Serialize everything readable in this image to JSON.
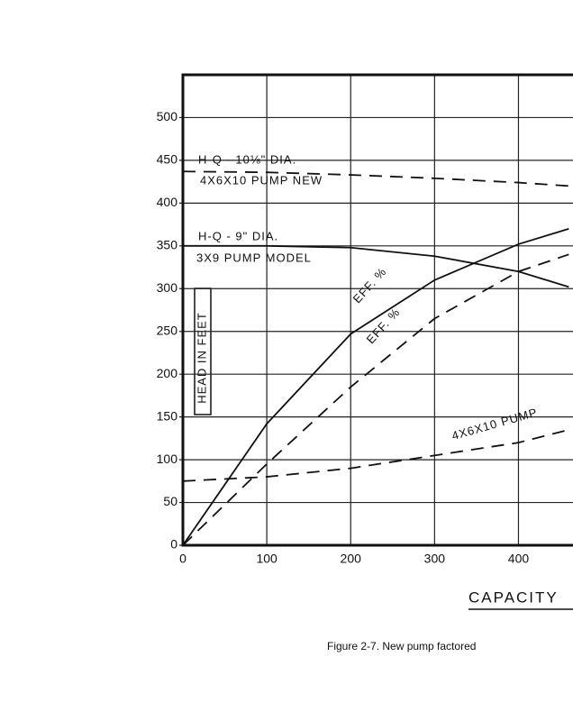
{
  "chart_data": {
    "type": "line",
    "xlabel": "CAPACITY",
    "ylabel": "HEAD IN FEET",
    "caption": "Figure 2-7. New pump factored",
    "xlim": [
      0,
      465
    ],
    "ylim": [
      0,
      550
    ],
    "xticks": [
      0,
      100,
      200,
      300,
      400
    ],
    "yticks": [
      0,
      50,
      100,
      150,
      200,
      250,
      300,
      350,
      400,
      450,
      500
    ],
    "grid": true,
    "x": [
      0,
      100,
      200,
      300,
      400,
      460
    ],
    "series": [
      {
        "color": "#111111",
        "dashed": true,
        "values": [
          437,
          436,
          433,
          429,
          424,
          420
        ]
      },
      {
        "color": "#111111",
        "dashed": false,
        "values": [
          350,
          350,
          348,
          338,
          320,
          302
        ]
      },
      {
        "color": "#111111",
        "dashed": false,
        "values": [
          0,
          142,
          247,
          310,
          352,
          370
        ]
      },
      {
        "color": "#111111",
        "dashed": true,
        "values": [
          0,
          95,
          185,
          265,
          320,
          340
        ]
      },
      {
        "color": "#111111",
        "dashed": true,
        "values": [
          75,
          80,
          90,
          105,
          120,
          135
        ]
      }
    ],
    "annotations": [
      "H-Q - 10⅛\" DIA.",
      "4X6X10  PUMP  NEW",
      "H-Q - 9\" DIA.",
      "3X9  PUMP  MODEL",
      "EFF. %",
      "EFF. %",
      "4X6X10 PUMP"
    ]
  }
}
